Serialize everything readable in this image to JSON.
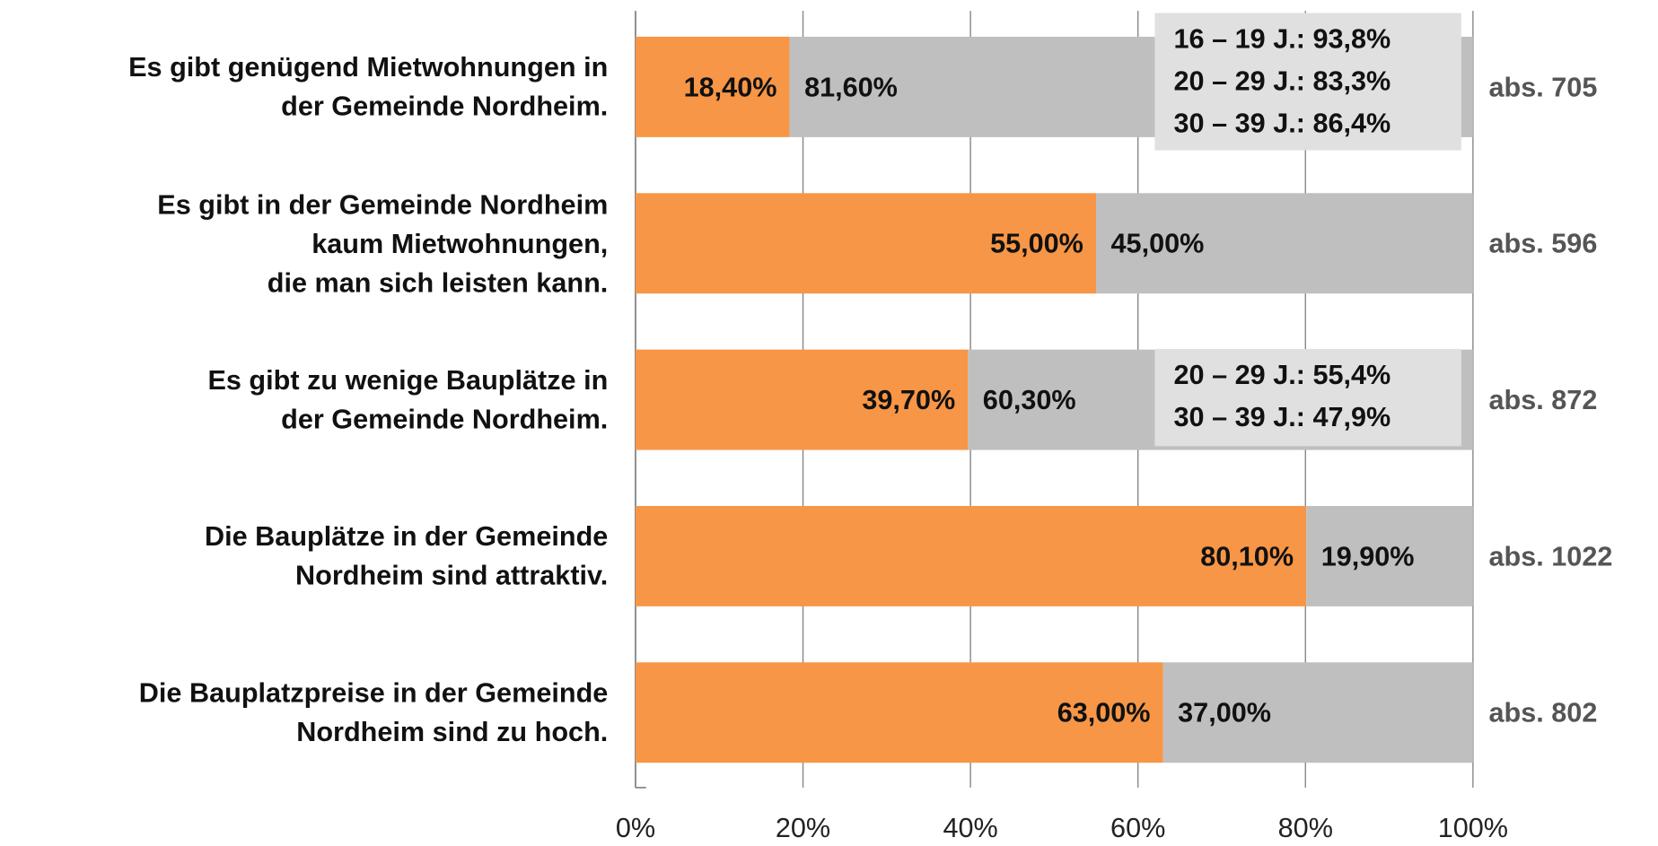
{
  "chart_data": {
    "type": "stacked_bar_horizontal",
    "categories": [
      "Es gibt genügend Mietwohnungen in\nder Gemeinde Nordheim.",
      "Es gibt in der Gemeinde Nordheim\nkaum Mietwohnungen,\ndie man sich leisten kann.",
      "Es gibt zu wenige Bauplätze in\nder Gemeinde Nordheim.",
      "Die Bauplätze in der Gemeinde\nNordheim sind attraktiv.",
      "Die Bauplatzpreise in der Gemeinde\nNordheim sind zu hoch."
    ],
    "series": [
      {
        "color": "#f79646",
        "values": [
          18.4,
          55.0,
          39.7,
          80.1,
          63.0
        ],
        "value_labels": [
          "18,40%",
          "55,00%",
          "39,70%",
          "80,10%",
          "63,00%"
        ]
      },
      {
        "color": "#bfbfbf",
        "values": [
          81.6,
          45.0,
          60.3,
          19.9,
          37.0
        ],
        "value_labels": [
          "81,60%",
          "45,00%",
          "60,30%",
          "19,90%",
          "37,00%"
        ]
      }
    ],
    "totals": [
      "abs. 705",
      "abs. 596",
      "abs. 872",
      "abs. 1022",
      "abs. 802"
    ],
    "annotations": [
      [
        "16 – 19 J.: 93,8%",
        "20 – 29 J.: 83,3%",
        "30 – 39 J.: 86,4%"
      ],
      [
        "20 – 29 J.: 55,4%",
        "30 – 39 J.: 47,9%"
      ]
    ],
    "xlim": [
      0,
      100
    ],
    "xticks": [
      {
        "value": 0,
        "label": "0%"
      },
      {
        "value": 20,
        "label": "20%"
      },
      {
        "value": 40,
        "label": "40%"
      },
      {
        "value": 60,
        "label": "60%"
      },
      {
        "value": 80,
        "label": "80%"
      },
      {
        "value": 100,
        "label": "100%"
      }
    ],
    "grid": true
  }
}
